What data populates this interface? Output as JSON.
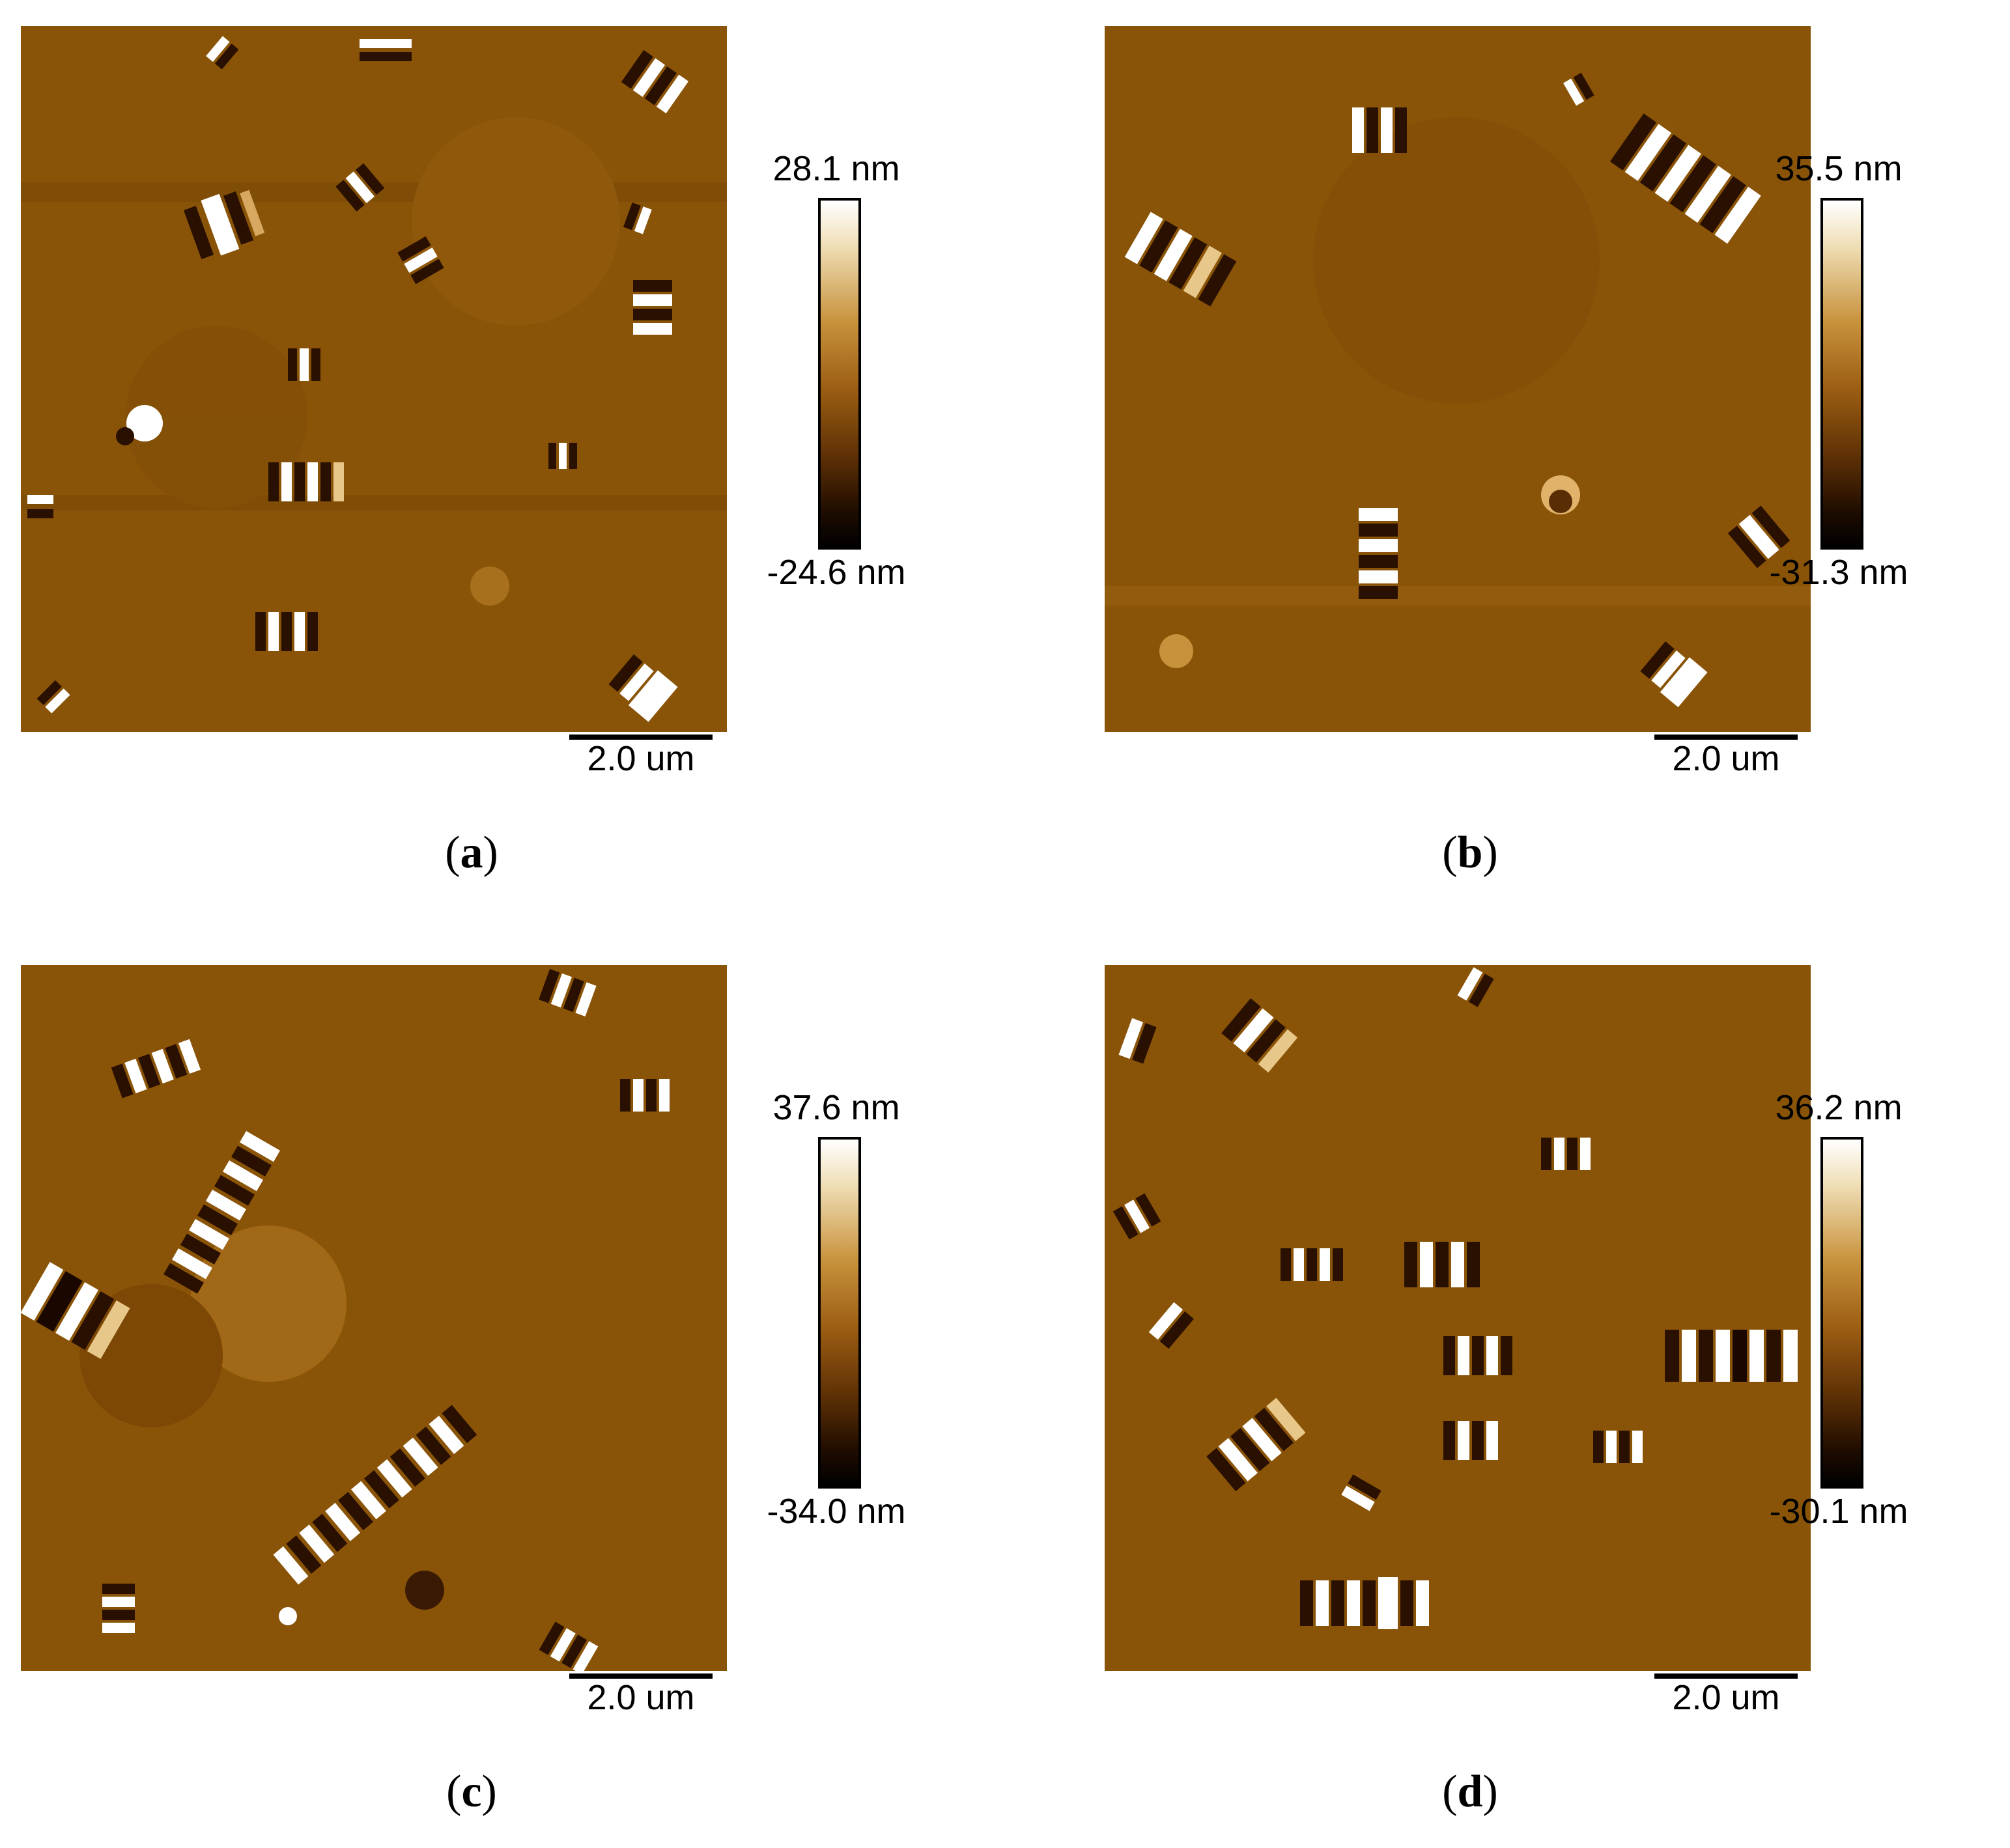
{
  "panels": [
    {
      "id": "a",
      "label_open": "(",
      "label_letter": "a",
      "label_close": ")",
      "scale_max": "28.1 nm",
      "scale_min": "-24.6 nm",
      "scalebar_label": "2.0 um"
    },
    {
      "id": "b",
      "label_open": "(",
      "label_letter": "b",
      "label_close": ")",
      "scale_max": "35.5 nm",
      "scale_min": "-31.3 nm",
      "scalebar_label": "2.0 um"
    },
    {
      "id": "c",
      "label_open": "(",
      "label_letter": "c",
      "label_close": ")",
      "scale_max": "37.6 nm",
      "scale_min": "-34.0 nm",
      "scalebar_label": "2.0 um"
    },
    {
      "id": "d",
      "label_open": "(",
      "label_letter": "d",
      "label_close": ")",
      "scale_max": "36.2 nm",
      "scale_min": "-30.1 nm",
      "scalebar_label": "2.0 um"
    }
  ],
  "colors": {
    "scan_base": "#8a5408",
    "scan_dark": "#2a1000",
    "scan_light": "#ffffff",
    "scan_mid": "#c48630"
  }
}
